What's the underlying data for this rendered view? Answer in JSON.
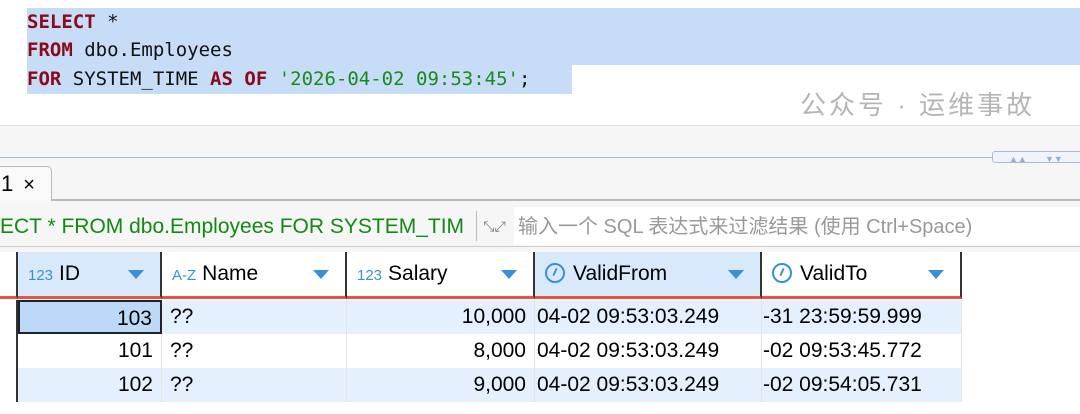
{
  "editor": {
    "lines": [
      [
        {
          "t": "SELECT",
          "c": "kw"
        },
        {
          "t": " *",
          "c": "tx"
        }
      ],
      [
        {
          "t": "FROM",
          "c": "kw"
        },
        {
          "t": " dbo.Employees",
          "c": "tx"
        }
      ],
      [
        {
          "t": "FOR",
          "c": "kw"
        },
        {
          "t": " SYSTEM_TIME ",
          "c": "tx"
        },
        {
          "t": "AS",
          "c": "kw"
        },
        {
          "t": " ",
          "c": "tx"
        },
        {
          "t": "OF",
          "c": "kw"
        },
        {
          "t": " ",
          "c": "tx"
        },
        {
          "t": "'2026-04-02 09:53:45'",
          "c": "str"
        },
        {
          "t": ";",
          "c": "tx"
        }
      ]
    ]
  },
  "tab": {
    "label": "1",
    "close": "×"
  },
  "filter": {
    "query": "ECT * FROM dbo.Employees FOR SYSTEM_TIM",
    "placeholder": "输入一个 SQL 表达式来过滤结果 (使用 Ctrl+Space)"
  },
  "columns": [
    {
      "label": "ID",
      "type": "123",
      "icon": "number-type-icon"
    },
    {
      "label": "Name",
      "type": "A-Z",
      "icon": "text-type-icon"
    },
    {
      "label": "Salary",
      "type": "123",
      "icon": "number-type-icon"
    },
    {
      "label": "ValidFrom",
      "type": "",
      "icon": "clock-icon"
    },
    {
      "label": "ValidTo",
      "type": "",
      "icon": "clock-icon"
    }
  ],
  "rows": [
    [
      "103",
      "??",
      "10,000",
      "04-02 09:53:03.249",
      "-31 23:59:59.999"
    ],
    [
      "101",
      "??",
      "8,000",
      "04-02 09:53:03.249",
      "-02 09:53:45.772"
    ],
    [
      "102",
      "??",
      "9,000",
      "04-02 09:53:03.249",
      "-02 09:54:05.731"
    ]
  ],
  "watermark": "公众号 · 运维事故",
  "colors": {
    "selection": "#c6dcf7",
    "keyword": "#8b0a1a",
    "string": "#1b8a1b",
    "accent": "#3a8fd8",
    "header_underline": "#e8553f"
  }
}
